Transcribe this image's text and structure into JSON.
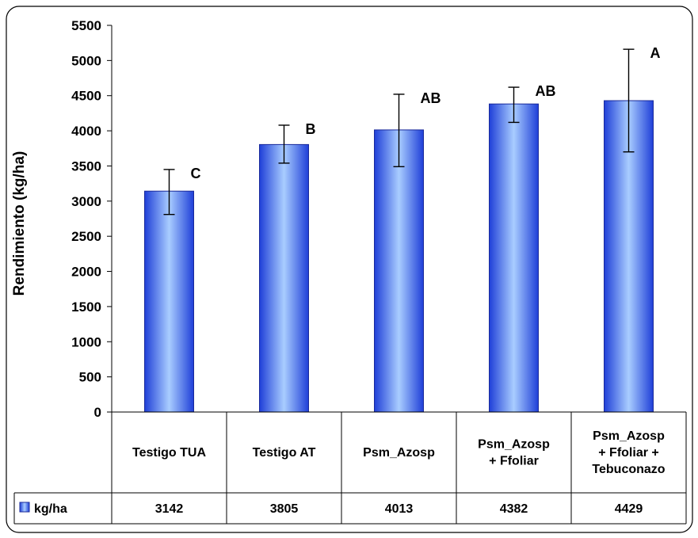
{
  "chart_data": {
    "type": "bar",
    "ylabel": "Rendimiento (kg/ha)",
    "ylim": [
      0,
      5500
    ],
    "yticks": [
      0,
      500,
      1000,
      1500,
      2000,
      2500,
      3000,
      3500,
      4000,
      4500,
      5000,
      5500
    ],
    "categories": [
      [
        "Testigo TUA"
      ],
      [
        "Testigo AT"
      ],
      [
        "Psm_Azosp"
      ],
      [
        "Psm_Azosp",
        "+ Ffoliar"
      ],
      [
        "Psm_Azosp",
        "+ Ffoliar +",
        "Tebuconazo"
      ]
    ],
    "series": [
      {
        "name": "kg/ha",
        "values": [
          3142,
          3805,
          4013,
          4382,
          4429
        ],
        "color": "#3366ff"
      }
    ],
    "error_bars": {
      "upper": [
        3450,
        4080,
        4520,
        4620,
        5160
      ],
      "lower": [
        2810,
        3540,
        3490,
        4120,
        3700
      ]
    },
    "significance_letters": [
      "C",
      "B",
      "AB",
      "AB",
      "A"
    ],
    "grid": false,
    "legend": "data-table-row"
  }
}
